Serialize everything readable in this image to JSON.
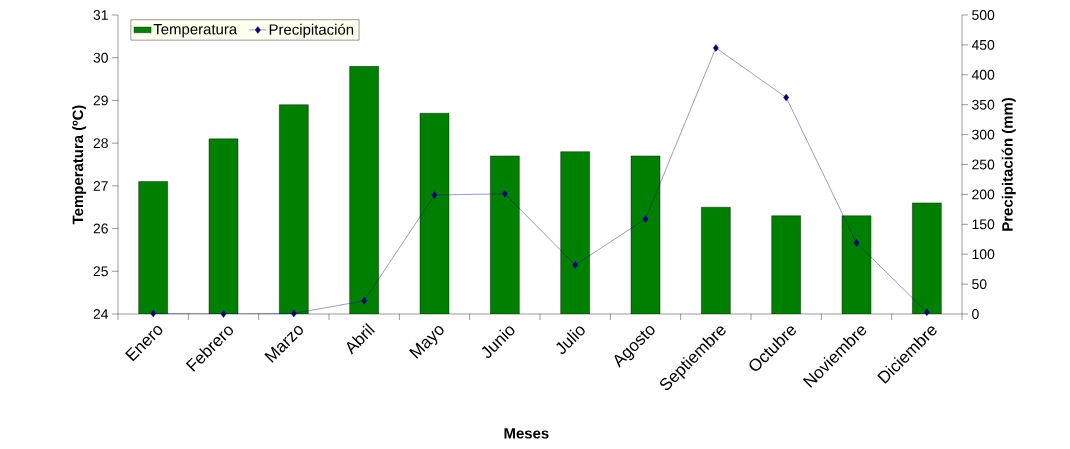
{
  "chart_data": {
    "type": "bar",
    "xlabel": "Meses",
    "ylabel": "Temperatura (ºC)",
    "y2label": "Precipitación (mm)",
    "categories": [
      "Enero",
      "Febrero",
      "Marzo",
      "Abril",
      "Mayo",
      "Junio",
      "Julio",
      "Agosto",
      "Septiembre",
      "Octubre",
      "Noviembre",
      "Diciembre"
    ],
    "series": [
      {
        "name": "Temperatura",
        "color": "#008000",
        "values": [
          27.1,
          28.1,
          28.9,
          29.8,
          28.7,
          27.7,
          27.8,
          27.7,
          26.5,
          26.3,
          26.3,
          26.6
        ]
      },
      {
        "name": "Precipitación",
        "type": "line",
        "axis": "y2",
        "color": "#000080",
        "marker": "diamond",
        "values": [
          1,
          0,
          1,
          22,
          199,
          201,
          82,
          159,
          445,
          362,
          119,
          3
        ]
      }
    ],
    "ylim": [
      24,
      31
    ],
    "yticks": [
      24,
      25,
      26,
      27,
      28,
      29,
      30,
      31
    ],
    "y2lim": [
      0,
      500
    ],
    "y2ticks": [
      0,
      50,
      100,
      150,
      200,
      250,
      300,
      350,
      400,
      450,
      500
    ],
    "legend": "top left"
  }
}
